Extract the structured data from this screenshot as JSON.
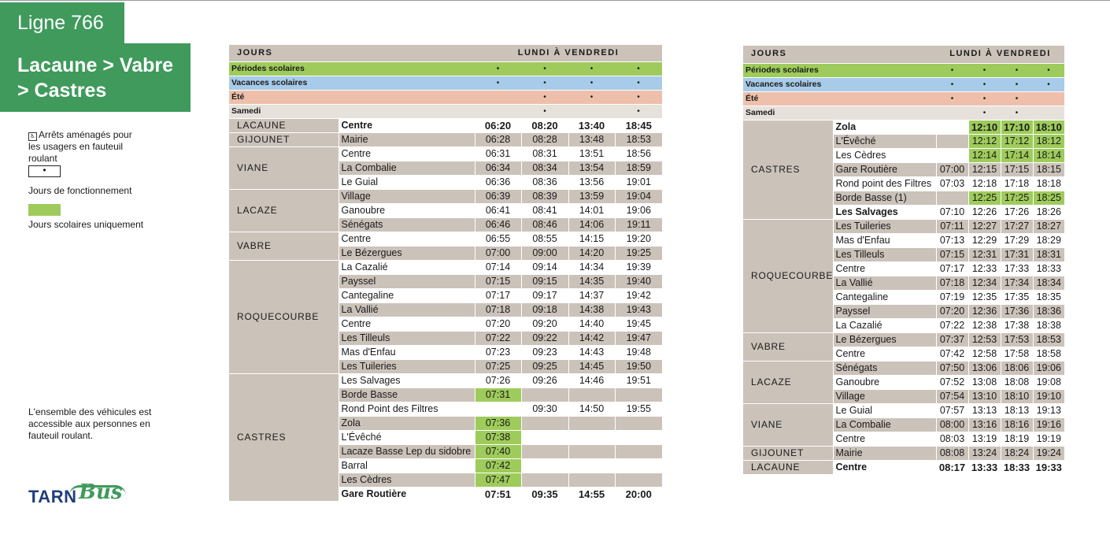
{
  "header": {
    "line_label": "Ligne 766",
    "route_lines": [
      "Lacaune > Vabre",
      "> Castres"
    ]
  },
  "legend": {
    "wheelchair_symbol": "♿",
    "access_text": "Arrêts aménagés pour les usagers en fauteuil roulant",
    "dot_symbol": "•",
    "running_days": "Jours de fonctionnement",
    "school_only": "Jours scolaires uniquement",
    "vehicles_note": "L'ensemble des véhicules est accessible aux personnes en fauteuil roulant."
  },
  "logo": {
    "tarn": "TARN",
    "bus": "Bus"
  },
  "colors": {
    "brand_green": "#3f9a5c",
    "school_green": "#9ecb5b",
    "vacation_blue": "#a7cbe9",
    "summer_salmon": "#eec0ab",
    "stop_gray": "#cbc2ba"
  },
  "table1": {
    "jours": "JOURS",
    "days_header": "LUNDI À VENDREDI",
    "periods": [
      {
        "label": "Périodes scolaires",
        "class": "r-scol",
        "marks": [
          "•",
          "•",
          "•",
          "•"
        ]
      },
      {
        "label": "Vacances scolaires",
        "class": "r-vac",
        "marks": [
          "•",
          "•",
          "•",
          "•"
        ]
      },
      {
        "label": "Été",
        "class": "r-ete",
        "marks": [
          "",
          "•",
          "•",
          "•"
        ]
      },
      {
        "label": "Samedi",
        "class": "r-sam",
        "marks": [
          "",
          "•",
          "",
          "•"
        ]
      }
    ],
    "towns": [
      {
        "name": "LACAUNE",
        "stops": [
          {
            "name": "Centre",
            "times": [
              "06:20",
              "08:20",
              "13:40",
              "18:45"
            ],
            "bold": true
          }
        ]
      },
      {
        "name": "GIJOUNET",
        "stops": [
          {
            "name": "Mairie",
            "times": [
              "06:28",
              "08:28",
              "13:48",
              "18:53"
            ]
          }
        ]
      },
      {
        "name": "VIANE",
        "stops": [
          {
            "name": "Centre",
            "times": [
              "06:31",
              "08:31",
              "13:51",
              "18:56"
            ]
          },
          {
            "name": "La Combalie",
            "times": [
              "06:34",
              "08:34",
              "13:54",
              "18:59"
            ]
          },
          {
            "name": "Le Guial",
            "times": [
              "06:36",
              "08:36",
              "13:56",
              "19:01"
            ]
          }
        ]
      },
      {
        "name": "LACAZE",
        "stops": [
          {
            "name": "Village",
            "times": [
              "06:39",
              "08:39",
              "13:59",
              "19:04"
            ]
          },
          {
            "name": "Ganoubre",
            "times": [
              "06:41",
              "08:41",
              "14:01",
              "19:06"
            ]
          },
          {
            "name": "Sénégats",
            "times": [
              "06:46",
              "08:46",
              "14:06",
              "19:11"
            ]
          }
        ]
      },
      {
        "name": "VABRE",
        "stops": [
          {
            "name": "Centre",
            "times": [
              "06:55",
              "08:55",
              "14:15",
              "19:20"
            ]
          },
          {
            "name": "Le Bézergues",
            "times": [
              "07:00",
              "09:00",
              "14:20",
              "19:25"
            ]
          }
        ]
      },
      {
        "name": "ROQUECOURBE",
        "stops": [
          {
            "name": "La Cazalié",
            "times": [
              "07:14",
              "09:14",
              "14:34",
              "19:39"
            ]
          },
          {
            "name": "Payssel",
            "times": [
              "07:15",
              "09:15",
              "14:35",
              "19:40"
            ]
          },
          {
            "name": "Cantegaline",
            "times": [
              "07:17",
              "09:17",
              "14:37",
              "19:42"
            ]
          },
          {
            "name": "La Vallié",
            "times": [
              "07:18",
              "09:18",
              "14:38",
              "19:43"
            ]
          },
          {
            "name": "Centre",
            "times": [
              "07:20",
              "09:20",
              "14:40",
              "19:45"
            ]
          },
          {
            "name": "Les Tilleuls",
            "times": [
              "07:22",
              "09:22",
              "14:42",
              "19:47"
            ]
          },
          {
            "name": "Mas d'Enfau",
            "times": [
              "07:23",
              "09:23",
              "14:43",
              "19:48"
            ]
          },
          {
            "name": "Les Tuileries",
            "times": [
              "07:25",
              "09:25",
              "14:45",
              "19:50"
            ]
          }
        ]
      },
      {
        "name": "CASTRES",
        "stops": [
          {
            "name": "Les Salvages",
            "times": [
              "07:26",
              "09:26",
              "14:46",
              "19:51"
            ]
          },
          {
            "name": "Borde Basse",
            "times": [
              "07:31",
              "",
              "",
              ""
            ],
            "school": [
              true,
              false,
              false,
              false
            ]
          },
          {
            "name": "Rond Point des Filtres",
            "times": [
              "",
              "09:30",
              "14:50",
              "19:55"
            ]
          },
          {
            "name": "Zola",
            "times": [
              "07:36",
              "",
              "",
              ""
            ],
            "school": [
              true,
              false,
              false,
              false
            ]
          },
          {
            "name": "L'Évêché",
            "times": [
              "07:38",
              "",
              "",
              ""
            ],
            "school": [
              true,
              false,
              false,
              false
            ]
          },
          {
            "name": "Lacaze Basse Lep du sidobre",
            "times": [
              "07:40",
              "",
              "",
              ""
            ],
            "school": [
              true,
              false,
              false,
              false
            ]
          },
          {
            "name": "Barral",
            "times": [
              "07:42",
              "",
              "",
              ""
            ],
            "school": [
              true,
              false,
              false,
              false
            ]
          },
          {
            "name": "Les Cèdres",
            "times": [
              "07:47",
              "",
              "",
              ""
            ],
            "school": [
              true,
              false,
              false,
              false
            ]
          },
          {
            "name": "Gare Routière",
            "times": [
              "07:51",
              "09:35",
              "14:55",
              "20:00"
            ],
            "bold": true
          }
        ]
      }
    ]
  },
  "table2": {
    "jours": "JOURS",
    "days_header": "LUNDI À VENDREDI",
    "periods": [
      {
        "label": "Périodes scolaires",
        "class": "r-scol",
        "marks": [
          "•",
          "•",
          "•",
          "•"
        ]
      },
      {
        "label": "Vacances scolaires",
        "class": "r-vac",
        "marks": [
          "•",
          "•",
          "•",
          "•"
        ]
      },
      {
        "label": "Été",
        "class": "r-ete",
        "marks": [
          "•",
          "•",
          "•",
          ""
        ]
      },
      {
        "label": "Samedi",
        "class": "r-sam",
        "marks": [
          "",
          "•",
          "•",
          ""
        ]
      }
    ],
    "towns": [
      {
        "name": "CASTRES",
        "stops": [
          {
            "name": "Zola",
            "times": [
              "",
              "12:10",
              "17:10",
              "18:10"
            ],
            "school": [
              false,
              true,
              true,
              true
            ],
            "bold": true
          },
          {
            "name": "L'Évêché",
            "times": [
              "",
              "12:12",
              "17:12",
              "18:12"
            ],
            "school": [
              false,
              true,
              true,
              true
            ]
          },
          {
            "name": "Les Cèdres",
            "times": [
              "",
              "12:14",
              "17:14",
              "18:14"
            ],
            "school": [
              false,
              true,
              true,
              true
            ]
          },
          {
            "name": "Gare Routière",
            "times": [
              "07:00",
              "12:15",
              "17:15",
              "18:15"
            ]
          },
          {
            "name": "Rond point des Filtres",
            "times": [
              "07:03",
              "12:18",
              "17:18",
              "18:18"
            ]
          },
          {
            "name": "Borde Basse (1)",
            "times": [
              "",
              "12:25",
              "17:25",
              "18:25"
            ],
            "school": [
              false,
              true,
              true,
              true
            ]
          },
          {
            "name": "Les Salvages",
            "times": [
              "07:10",
              "12:26",
              "17:26",
              "18:26"
            ],
            "boldName": true
          }
        ]
      },
      {
        "name": "ROQUECOURBE",
        "stops": [
          {
            "name": "Les Tuileries",
            "times": [
              "07:11",
              "12:27",
              "17:27",
              "18:27"
            ]
          },
          {
            "name": "Mas d'Enfau",
            "times": [
              "07:13",
              "12:29",
              "17:29",
              "18:29"
            ]
          },
          {
            "name": "Les Tilleuls",
            "times": [
              "07:15",
              "12:31",
              "17:31",
              "18:31"
            ]
          },
          {
            "name": "Centre",
            "times": [
              "07:17",
              "12:33",
              "17:33",
              "18:33"
            ]
          },
          {
            "name": "La Vallié",
            "times": [
              "07:18",
              "12:34",
              "17:34",
              "18:34"
            ]
          },
          {
            "name": "Cantegaline",
            "times": [
              "07:19",
              "12:35",
              "17:35",
              "18:35"
            ]
          },
          {
            "name": "Payssel",
            "times": [
              "07:20",
              "12:36",
              "17:36",
              "18:36"
            ]
          },
          {
            "name": "La Cazalié",
            "times": [
              "07:22",
              "12:38",
              "17:38",
              "18:38"
            ]
          }
        ]
      },
      {
        "name": "VABRE",
        "stops": [
          {
            "name": "Le Bézergues",
            "times": [
              "07:37",
              "12:53",
              "17:53",
              "18:53"
            ]
          },
          {
            "name": "Centre",
            "times": [
              "07:42",
              "12:58",
              "17:58",
              "18:58"
            ]
          }
        ]
      },
      {
        "name": "LACAZE",
        "stops": [
          {
            "name": "Sénégats",
            "times": [
              "07:50",
              "13:06",
              "18:06",
              "19:06"
            ]
          },
          {
            "name": "Ganoubre",
            "times": [
              "07:52",
              "13:08",
              "18:08",
              "19:08"
            ]
          },
          {
            "name": "Village",
            "times": [
              "07:54",
              "13:10",
              "18:10",
              "19:10"
            ]
          }
        ]
      },
      {
        "name": "VIANE",
        "stops": [
          {
            "name": "Le Guial",
            "times": [
              "07:57",
              "13:13",
              "18:13",
              "19:13"
            ]
          },
          {
            "name": "La Combalie",
            "times": [
              "08:00",
              "13:16",
              "18:16",
              "19:16"
            ]
          },
          {
            "name": "Centre",
            "times": [
              "08:03",
              "13:19",
              "18:19",
              "19:19"
            ]
          }
        ]
      },
      {
        "name": "GIJOUNET",
        "stops": [
          {
            "name": "Mairie",
            "times": [
              "08:08",
              "13:24",
              "18:24",
              "19:24"
            ]
          }
        ]
      },
      {
        "name": "LACAUNE",
        "stops": [
          {
            "name": "Centre",
            "times": [
              "08:17",
              "13:33",
              "18:33",
              "19:33"
            ],
            "bold": true
          }
        ]
      }
    ]
  }
}
